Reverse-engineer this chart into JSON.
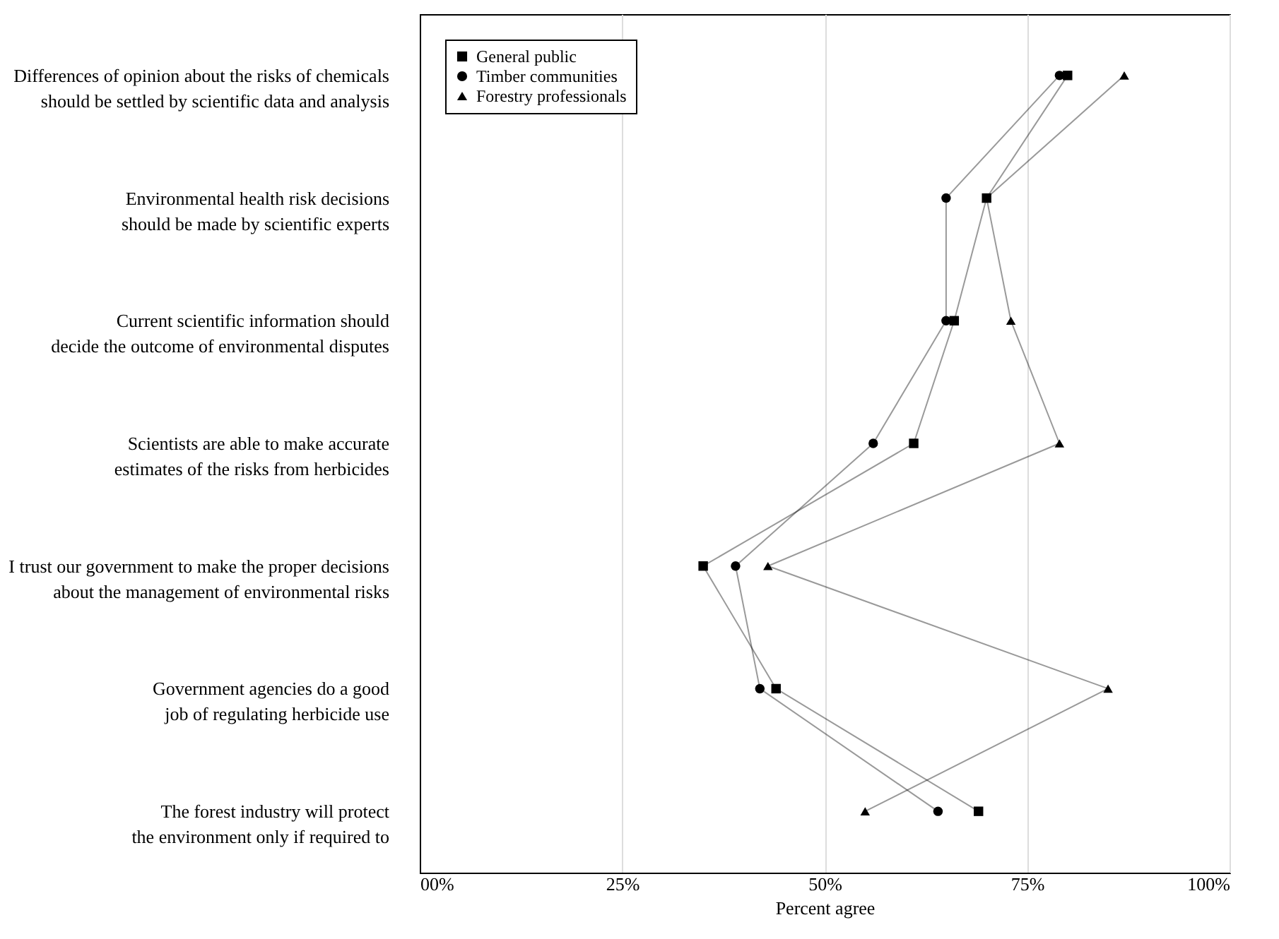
{
  "chart_data": {
    "type": "line",
    "categories": [
      "Differences of opinion about the risks of chemicals should be settled by scientific data and analysis",
      "Environmental health risk decisions should be made by scientific experts",
      "Current scientific information should decide the outcome of environmental disputes",
      "Scientists are able to make accurate estimates of the risks from herbicides",
      "I trust our government to make the proper decisions about the management of environmental risks",
      "Government agencies do a good job of regulating herbicide use",
      "The forest industry will protect the environment only if required to"
    ],
    "orientation": "horizontal",
    "xlabel": "Percent agree",
    "xlim": [
      0,
      100
    ],
    "xticks": [
      {
        "value": 0,
        "label": "00%"
      },
      {
        "value": 25,
        "label": "25%"
      },
      {
        "value": 50,
        "label": "50%"
      },
      {
        "value": 75,
        "label": "75%"
      },
      {
        "value": 100,
        "label": "100%"
      }
    ],
    "grid": "x",
    "legend": "top left",
    "series": [
      {
        "name": "General public",
        "color": "#000000",
        "marker": "square",
        "values": [
          80,
          70,
          66,
          61,
          35,
          44,
          69
        ]
      },
      {
        "name": "Timber communities",
        "color": "#000000",
        "marker": "circle",
        "values": [
          79,
          65,
          65,
          56,
          39,
          42,
          64
        ]
      },
      {
        "name": "Forestry professionals",
        "color": "#000000",
        "marker": "triangle",
        "values": [
          87,
          70,
          73,
          79,
          43,
          85,
          55
        ]
      }
    ]
  }
}
